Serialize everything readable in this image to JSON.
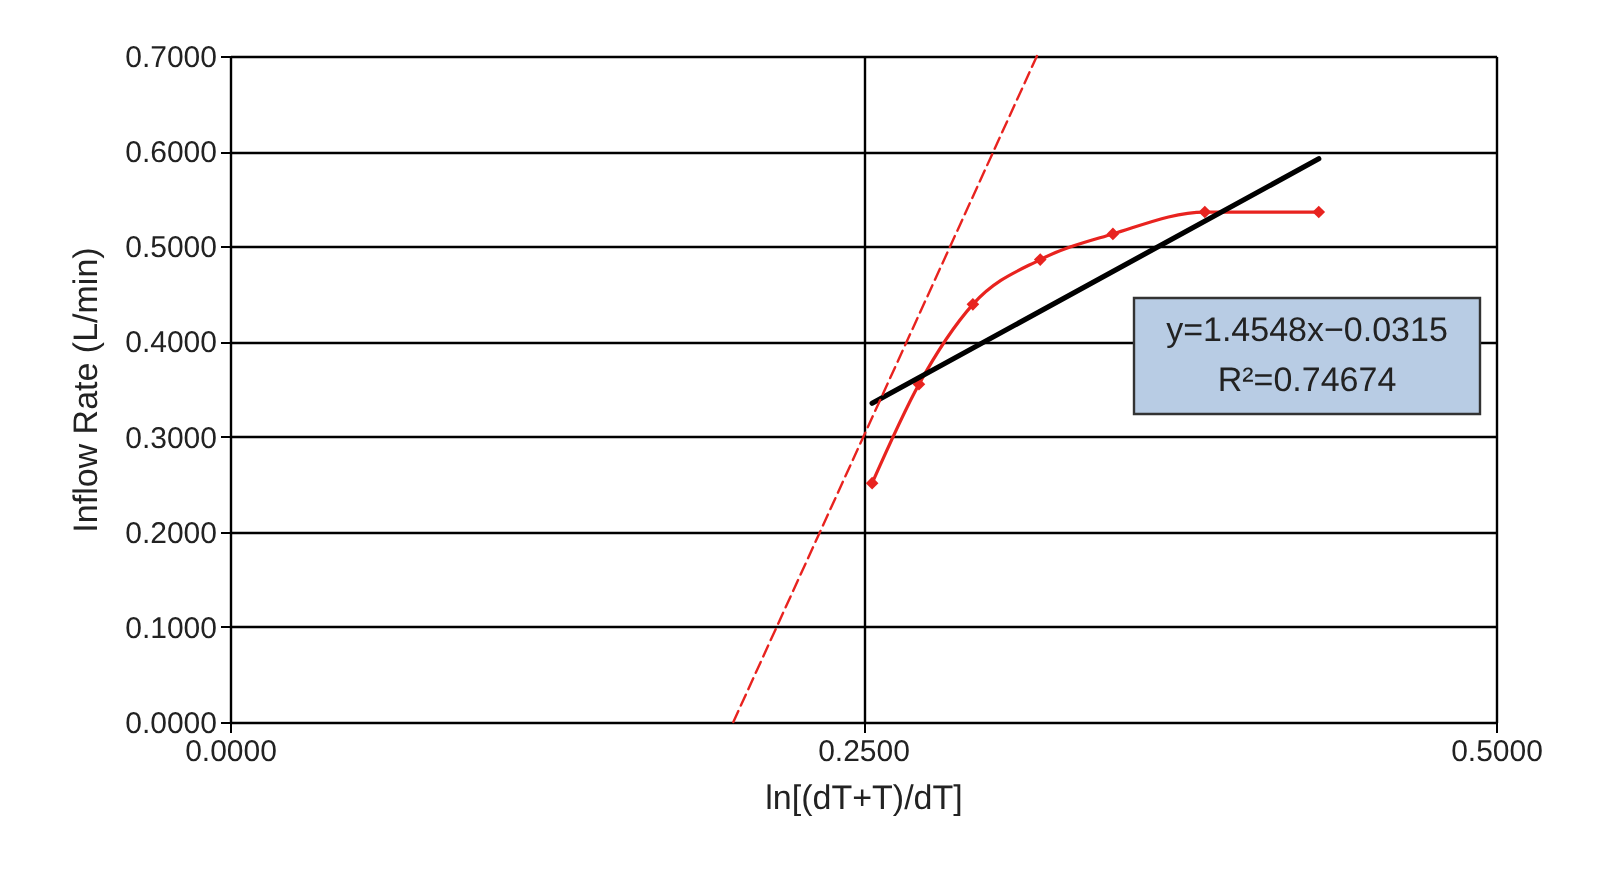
{
  "chart_data": {
    "type": "line",
    "xlabel": "ln[(dT+T)/dT]",
    "ylabel": "Inflow Rate (L/min)",
    "xlim": [
      0,
      0.5
    ],
    "ylim": [
      0,
      0.7
    ],
    "xticks": [
      {
        "value": 0,
        "label": "0.0000"
      },
      {
        "value": 0.25,
        "label": "0.2500"
      },
      {
        "value": 0.5,
        "label": "0.5000"
      }
    ],
    "yticks": [
      {
        "value": 0,
        "label": "0.0000"
      },
      {
        "value": 0.1,
        "label": "0.1000"
      },
      {
        "value": 0.2,
        "label": "0.2000"
      },
      {
        "value": 0.3,
        "label": "0.3000"
      },
      {
        "value": 0.4,
        "label": "0.4000"
      },
      {
        "value": 0.5,
        "label": "0.5000"
      },
      {
        "value": 0.6,
        "label": "0.6000"
      },
      {
        "value": 0.7,
        "label": "0.7000"
      }
    ],
    "grid": true,
    "series": [
      {
        "color": "#e8231f",
        "marker": "diamond",
        "line_style": "solid",
        "x": [
          0.2536,
          0.2721,
          0.2934,
          0.32,
          0.3487,
          0.385,
          0.43
        ],
        "values": [
          0.251,
          0.355,
          0.439,
          0.486,
          0.513,
          0.536,
          0.536
        ]
      },
      {
        "color": "#000000",
        "marker": "none",
        "line_style": "solid",
        "x": [
          0.2536,
          0.43
        ],
        "values": [
          0.335,
          0.592
        ]
      },
      {
        "color": "#e8231f",
        "marker": "none",
        "line_style": "dashed",
        "x": [
          0.1988,
          0.3187
        ],
        "values": [
          0,
          0.7
        ]
      }
    ],
    "annotations": [
      "y=1.4548x−0.0315",
      "R²=0.74674"
    ]
  }
}
